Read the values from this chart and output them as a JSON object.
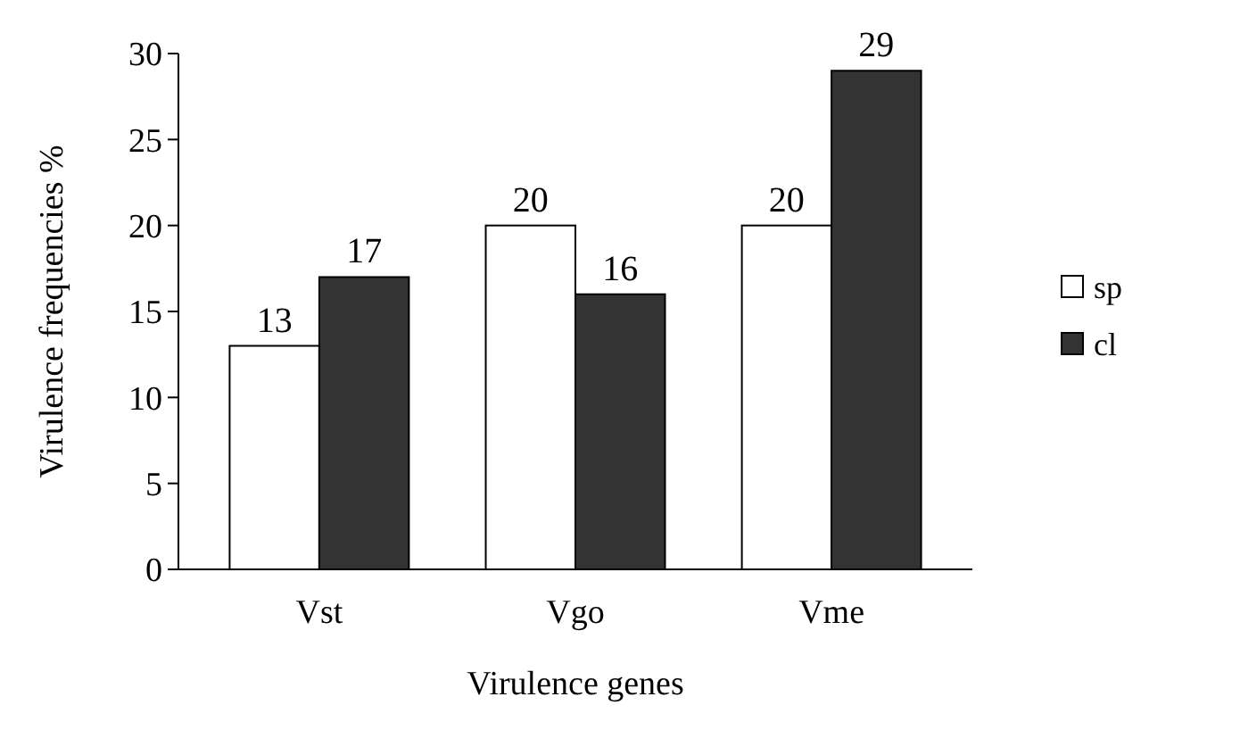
{
  "chart_data": {
    "type": "bar",
    "xlabel": "Virulence genes",
    "ylabel": "Virulence frequencies %",
    "categories": [
      "Vst",
      "Vgo",
      "Vme"
    ],
    "series": [
      {
        "name": "sp",
        "color": "#ffffff",
        "values": [
          13,
          20,
          20
        ]
      },
      {
        "name": "cl",
        "color": "#333333",
        "values": [
          17,
          16,
          29
        ]
      }
    ],
    "ylim": [
      0,
      30
    ],
    "yticks": [
      0,
      5,
      10,
      15,
      20,
      25,
      30
    ],
    "data_labels": true,
    "legend": "right",
    "grid": false
  }
}
